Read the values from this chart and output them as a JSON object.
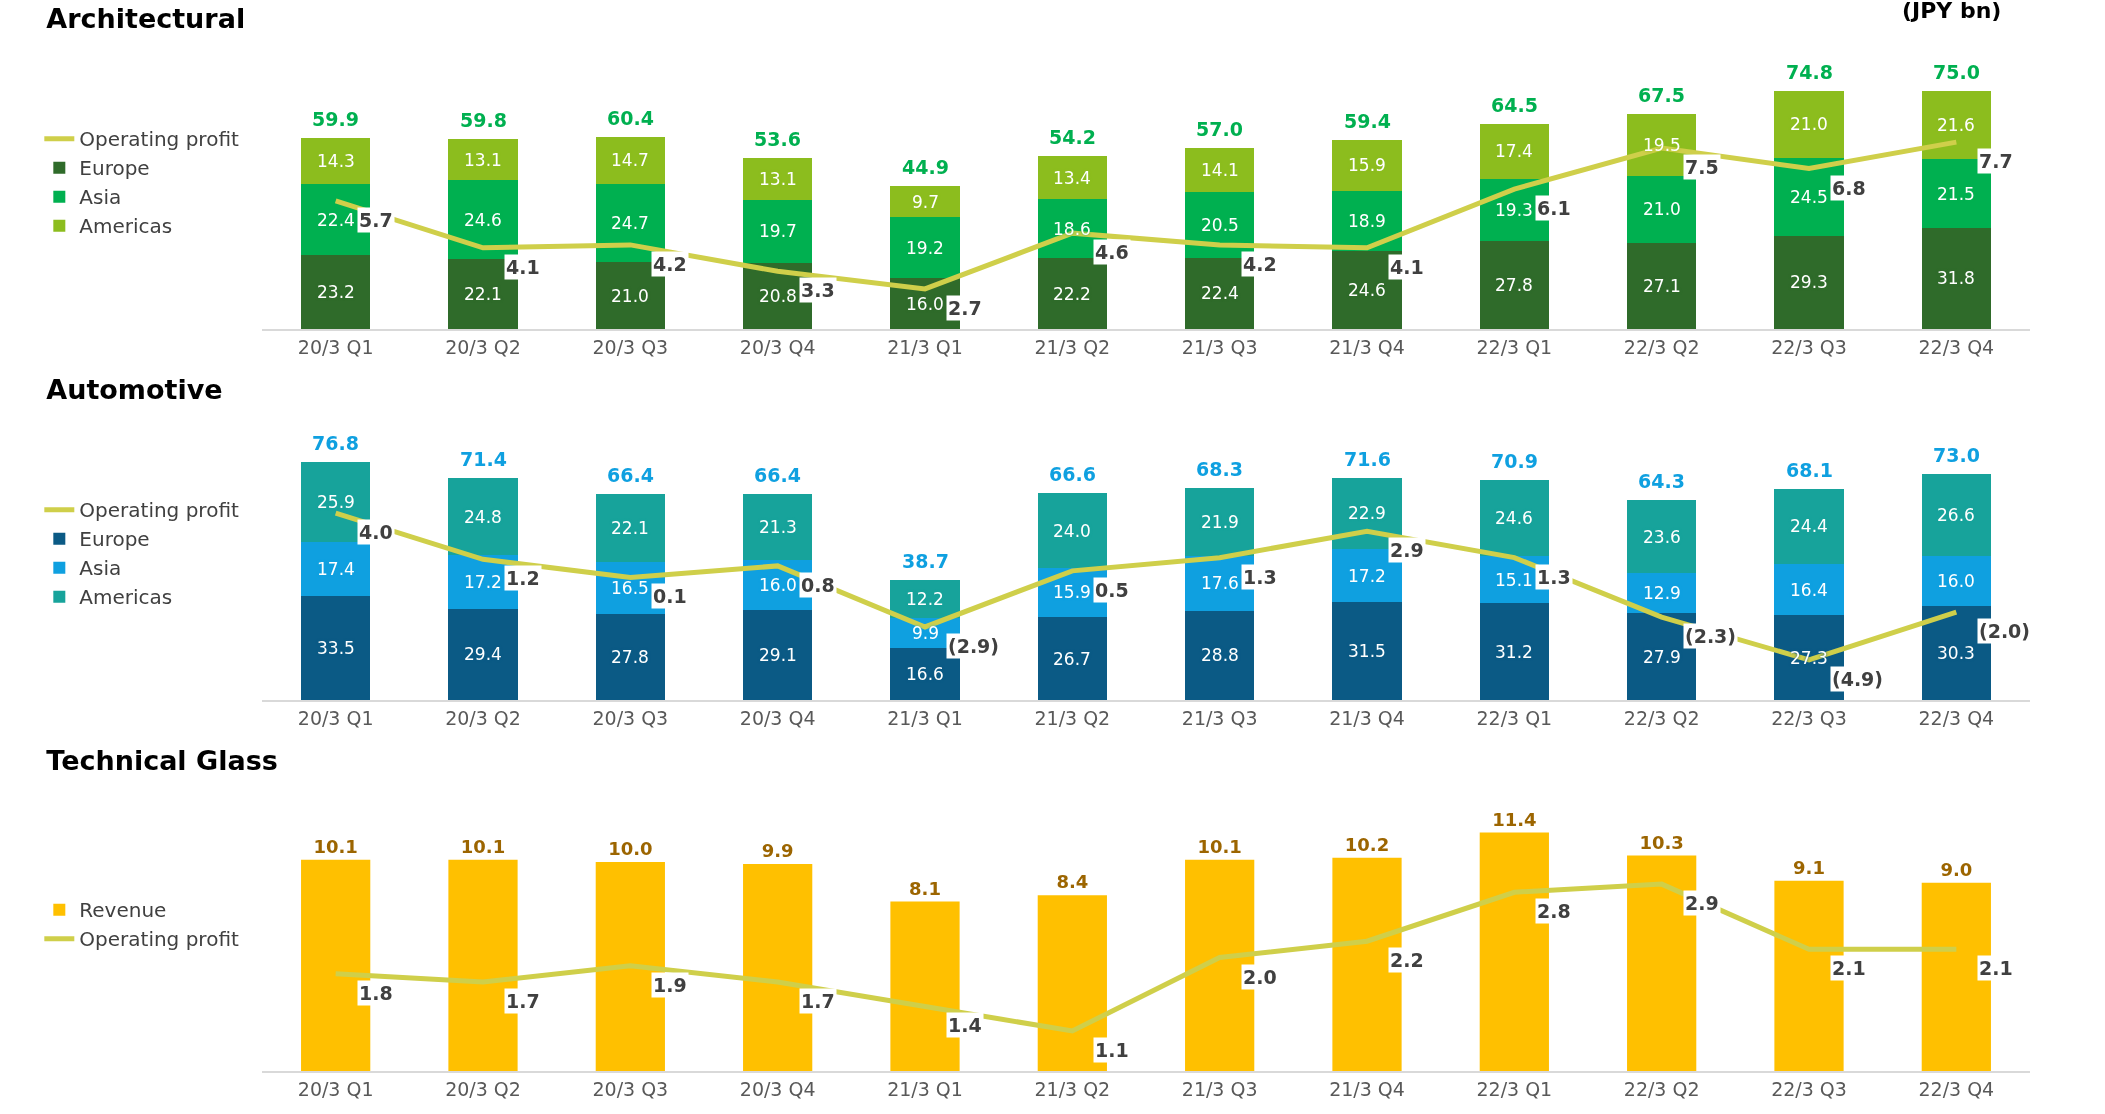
{
  "chart_data": [
    {
      "type": "bar",
      "title": "Architectural",
      "annotations": [
        "(JPY bn)"
      ],
      "stacked": true,
      "legend": "left",
      "grid": false,
      "tick_labels": "x",
      "categories": [
        "20/3 Q1",
        "20/3 Q2",
        "20/3 Q3",
        "20/3 Q4",
        "21/3 Q1",
        "21/3 Q2",
        "21/3 Q3",
        "21/3 Q4",
        "22/3 Q1",
        "22/3 Q2",
        "22/3 Q3",
        "22/3 Q4"
      ],
      "totals": [
        "59.9",
        "59.8",
        "60.4",
        "53.6",
        "44.9",
        "54.2",
        "57.0",
        "59.4",
        "64.5",
        "67.5",
        "74.8",
        "75.0"
      ],
      "series": [
        {
          "name": "Europe",
          "color": "#2f6b2a",
          "values": [
            23.2,
            22.1,
            21.0,
            20.8,
            16.0,
            22.2,
            22.4,
            24.6,
            27.8,
            27.1,
            29.3,
            31.8
          ],
          "value_labels": [
            "23.2",
            "22.1",
            "21.0",
            "20.8",
            "16.0",
            "22.2",
            "22.4",
            "24.6",
            "27.8",
            "27.1",
            "29.3",
            "31.8"
          ]
        },
        {
          "name": "Asia",
          "color": "#00b050",
          "values": [
            22.4,
            24.6,
            24.7,
            19.7,
            19.2,
            18.6,
            20.5,
            18.9,
            19.3,
            21.0,
            24.5,
            21.5
          ],
          "value_labels": [
            "22.4",
            "24.6",
            "24.7",
            "19.7",
            "19.2",
            "18.6",
            "20.5",
            "18.9",
            "19.3",
            "21.0",
            "24.5",
            "21.5"
          ]
        },
        {
          "name": "Americas",
          "color": "#8cbd1e",
          "values": [
            14.3,
            13.1,
            14.7,
            13.1,
            9.7,
            13.4,
            14.1,
            15.9,
            17.4,
            19.5,
            21.0,
            21.6
          ],
          "value_labels": [
            "14.3",
            "13.1",
            "14.7",
            "13.1",
            "9.7",
            "13.4",
            "14.1",
            "15.9",
            "17.4",
            "19.5",
            "21.0",
            "21.6"
          ]
        },
        {
          "name": "Operating profit",
          "type": "line",
          "axis": "y2",
          "color": "#cfcf4a",
          "marker": "none",
          "line_style": "solid",
          "values": [
            5.7,
            4.1,
            4.2,
            3.3,
            2.7,
            4.6,
            4.2,
            4.1,
            6.1,
            7.5,
            6.8,
            7.7
          ],
          "value_labels": [
            "5.7",
            "4.1",
            "4.2",
            "3.3",
            "2.7",
            "4.6",
            "4.2",
            "4.1",
            "6.1",
            "7.5",
            "6.8",
            "7.7"
          ]
        }
      ]
    },
    {
      "type": "bar",
      "title": "Automotive",
      "stacked": true,
      "legend": "left",
      "grid": false,
      "tick_labels": "x",
      "categories": [
        "20/3 Q1",
        "20/3 Q2",
        "20/3 Q3",
        "20/3 Q4",
        "21/3 Q1",
        "21/3 Q2",
        "21/3 Q3",
        "21/3 Q4",
        "22/3 Q1",
        "22/3 Q2",
        "22/3 Q3",
        "22/3 Q4"
      ],
      "totals": [
        "76.8",
        "71.4",
        "66.4",
        "66.4",
        "38.7",
        "66.6",
        "68.3",
        "71.6",
        "70.9",
        "64.3",
        "68.1",
        "73.0"
      ],
      "series": [
        {
          "name": "Europe",
          "color": "#0b5a85",
          "values": [
            33.5,
            29.4,
            27.8,
            29.1,
            16.6,
            26.7,
            28.8,
            31.5,
            31.2,
            27.9,
            27.3,
            30.3
          ],
          "value_labels": [
            "33.5",
            "29.4",
            "27.8",
            "29.1",
            "16.6",
            "26.7",
            "28.8",
            "31.5",
            "31.2",
            "27.9",
            "27.3",
            "30.3"
          ]
        },
        {
          "name": "Asia",
          "color": "#0fa0e0",
          "values": [
            17.4,
            17.2,
            16.5,
            16.0,
            9.9,
            15.9,
            17.6,
            17.2,
            15.1,
            12.9,
            16.4,
            16.0
          ],
          "value_labels": [
            "17.4",
            "17.2",
            "16.5",
            "16.0",
            "9.9",
            "15.9",
            "17.6",
            "17.2",
            "15.1",
            "12.9",
            "16.4",
            "16.0"
          ]
        },
        {
          "name": "Americas",
          "color": "#17a39b",
          "values": [
            25.9,
            24.8,
            22.1,
            21.3,
            12.2,
            24.0,
            21.9,
            22.9,
            24.6,
            23.6,
            24.4,
            26.6
          ],
          "value_labels": [
            "25.9",
            "24.8",
            "22.1",
            "21.3",
            "12.2",
            "24.0",
            "21.9",
            "22.9",
            "24.6",
            "23.6",
            "24.4",
            "26.6"
          ]
        },
        {
          "name": "Operating profit",
          "type": "line",
          "axis": "y2",
          "color": "#cfcf4a",
          "marker": "none",
          "line_style": "solid",
          "values": [
            4.0,
            1.2,
            0.1,
            0.8,
            -2.9,
            0.5,
            1.3,
            2.9,
            1.3,
            -2.3,
            -4.9,
            -2.0
          ],
          "value_labels": [
            "4.0",
            "1.2",
            "0.1",
            "0.8",
            "(2.9)",
            "0.5",
            "1.3",
            "2.9",
            "1.3",
            "(2.3)",
            "(4.9)",
            "(2.0)"
          ]
        }
      ]
    },
    {
      "type": "bar",
      "title": "Technical Glass",
      "legend": "left",
      "grid": false,
      "tick_labels": "x",
      "categories": [
        "20/3 Q1",
        "20/3 Q2",
        "20/3 Q3",
        "20/3 Q4",
        "21/3 Q1",
        "21/3 Q2",
        "21/3 Q3",
        "21/3 Q4",
        "22/3 Q1",
        "22/3 Q2",
        "22/3 Q3",
        "22/3 Q4"
      ],
      "series": [
        {
          "name": "Revenue",
          "color": "#ffc000",
          "values": [
            10.1,
            10.1,
            10.0,
            9.9,
            8.1,
            8.4,
            10.1,
            10.2,
            11.4,
            10.3,
            9.1,
            9.0
          ],
          "value_labels": [
            "10.1",
            "10.1",
            "10.0",
            "9.9",
            "8.1",
            "8.4",
            "10.1",
            "10.2",
            "11.4",
            "10.3",
            "9.1",
            "9.0"
          ]
        },
        {
          "name": "Operating profit",
          "type": "line",
          "axis": "y2",
          "color": "#cfcf4a",
          "marker": "none",
          "line_style": "solid",
          "values": [
            1.8,
            1.7,
            1.9,
            1.7,
            1.4,
            1.1,
            2.0,
            2.2,
            2.8,
            2.9,
            2.1,
            2.1
          ],
          "value_labels": [
            "1.8",
            "1.7",
            "1.9",
            "1.7",
            "1.4",
            "1.1",
            "2.0",
            "2.2",
            "2.8",
            "2.9",
            "2.1",
            "2.1"
          ]
        }
      ]
    }
  ]
}
